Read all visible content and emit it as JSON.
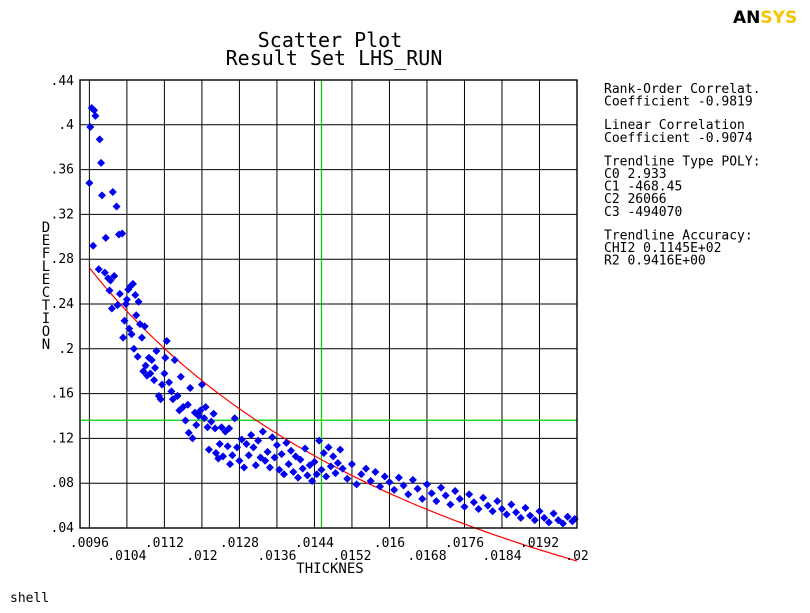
{
  "logo": {
    "part1": "ANSYS",
    "accent_color": "#f5c400"
  },
  "caption": "shell",
  "info_panel": [
    "Rank-Order Correlat.",
    "Coefficient -0.9819",
    "",
    "Linear Correlation",
    "Coefficient -0.9074",
    "",
    "Trendline Type POLY:",
    "C0  2.933",
    "C1  -468.45",
    "C2  26066",
    "C3  -494070",
    "",
    "Trendline Accuracy:",
    "CHI2 0.1145E+02",
    "R2   0.9416E+00"
  ],
  "chart_data": {
    "type": "scatter",
    "title": "Scatter Plot",
    "subtitle": "Result Set LHS_RUN",
    "xlabel": "THICKNES",
    "ylabel": "DEFLECTION",
    "xlim": [
      0.0094,
      0.02
    ],
    "ylim": [
      0.04,
      0.44
    ],
    "x_ticks": [
      ".0096",
      ".0104",
      ".0112",
      ".012",
      ".0128",
      ".0136",
      ".0144",
      ".0152",
      ".016",
      ".0168",
      ".0176",
      ".0184",
      ".0192",
      ".02"
    ],
    "x_tick_values": [
      0.0096,
      0.0104,
      0.0112,
      0.012,
      0.0128,
      0.0136,
      0.0144,
      0.0152,
      0.016,
      0.0168,
      0.0176,
      0.0184,
      0.0192,
      0.02
    ],
    "y_ticks": [
      ".04",
      ".08",
      ".12",
      ".16",
      ".2",
      ".24",
      ".28",
      ".32",
      ".36",
      ".4",
      ".44"
    ],
    "y_tick_values": [
      0.04,
      0.08,
      0.12,
      0.16,
      0.2,
      0.24,
      0.28,
      0.32,
      0.36,
      0.4,
      0.44
    ],
    "grid": true,
    "marker_color": "#0000ee",
    "trend_color": "#ff0000",
    "mean_line_color": "#00cc00",
    "mean_x": 0.01455,
    "mean_y": 0.1362,
    "trendline": {
      "type": "poly",
      "coefficients": [
        2.933,
        -468.45,
        26066,
        -494070
      ]
    },
    "points": [
      [
        0.0096,
        0.348
      ],
      [
        0.00962,
        0.398
      ],
      [
        0.00965,
        0.415
      ],
      [
        0.00968,
        0.292
      ],
      [
        0.0097,
        0.413
      ],
      [
        0.00973,
        0.408
      ],
      [
        0.0098,
        0.271
      ],
      [
        0.00982,
        0.387
      ],
      [
        0.00985,
        0.366
      ],
      [
        0.00987,
        0.337
      ],
      [
        0.00993,
        0.268
      ],
      [
        0.00995,
        0.299
      ],
      [
        0.01,
        0.263
      ],
      [
        0.01003,
        0.252
      ],
      [
        0.01005,
        0.261
      ],
      [
        0.01008,
        0.236
      ],
      [
        0.0101,
        0.34
      ],
      [
        0.01013,
        0.265
      ],
      [
        0.01018,
        0.327
      ],
      [
        0.0102,
        0.239
      ],
      [
        0.01023,
        0.302
      ],
      [
        0.01025,
        0.249
      ],
      [
        0.0103,
        0.303
      ],
      [
        0.01032,
        0.21
      ],
      [
        0.01035,
        0.225
      ],
      [
        0.01038,
        0.24
      ],
      [
        0.0104,
        0.244
      ],
      [
        0.01043,
        0.253
      ],
      [
        0.01045,
        0.218
      ],
      [
        0.01048,
        0.256
      ],
      [
        0.0105,
        0.213
      ],
      [
        0.01053,
        0.258
      ],
      [
        0.01055,
        0.2
      ],
      [
        0.01058,
        0.248
      ],
      [
        0.0106,
        0.23
      ],
      [
        0.01063,
        0.193
      ],
      [
        0.01065,
        0.242
      ],
      [
        0.01068,
        0.222
      ],
      [
        0.01072,
        0.21
      ],
      [
        0.01075,
        0.18
      ],
      [
        0.01078,
        0.22
      ],
      [
        0.0108,
        0.185
      ],
      [
        0.01083,
        0.176
      ],
      [
        0.01087,
        0.192
      ],
      [
        0.0109,
        0.178
      ],
      [
        0.01093,
        0.19
      ],
      [
        0.01098,
        0.172
      ],
      [
        0.011,
        0.183
      ],
      [
        0.01103,
        0.198
      ],
      [
        0.01108,
        0.158
      ],
      [
        0.01112,
        0.155
      ],
      [
        0.01115,
        0.168
      ],
      [
        0.0112,
        0.178
      ],
      [
        0.01122,
        0.192
      ],
      [
        0.01125,
        0.207
      ],
      [
        0.0113,
        0.17
      ],
      [
        0.01135,
        0.162
      ],
      [
        0.01138,
        0.155
      ],
      [
        0.01142,
        0.19
      ],
      [
        0.01148,
        0.158
      ],
      [
        0.01152,
        0.145
      ],
      [
        0.01155,
        0.175
      ],
      [
        0.0116,
        0.148
      ],
      [
        0.01165,
        0.136
      ],
      [
        0.0117,
        0.15
      ],
      [
        0.01172,
        0.125
      ],
      [
        0.01175,
        0.165
      ],
      [
        0.0118,
        0.12
      ],
      [
        0.01185,
        0.143
      ],
      [
        0.01188,
        0.132
      ],
      [
        0.01193,
        0.14
      ],
      [
        0.01197,
        0.145
      ],
      [
        0.012,
        0.168
      ],
      [
        0.01205,
        0.138
      ],
      [
        0.01208,
        0.148
      ],
      [
        0.01212,
        0.13
      ],
      [
        0.01215,
        0.11
      ],
      [
        0.0122,
        0.135
      ],
      [
        0.01225,
        0.142
      ],
      [
        0.01228,
        0.129
      ],
      [
        0.0123,
        0.107
      ],
      [
        0.01235,
        0.102
      ],
      [
        0.01238,
        0.115
      ],
      [
        0.01242,
        0.13
      ],
      [
        0.01245,
        0.104
      ],
      [
        0.0125,
        0.126
      ],
      [
        0.01255,
        0.113
      ],
      [
        0.01258,
        0.129
      ],
      [
        0.0126,
        0.097
      ],
      [
        0.01265,
        0.105
      ],
      [
        0.0127,
        0.138
      ],
      [
        0.01275,
        0.112
      ],
      [
        0.0128,
        0.1
      ],
      [
        0.01285,
        0.119
      ],
      [
        0.0129,
        0.094
      ],
      [
        0.01295,
        0.115
      ],
      [
        0.013,
        0.105
      ],
      [
        0.01305,
        0.123
      ],
      [
        0.0131,
        0.112
      ],
      [
        0.01315,
        0.096
      ],
      [
        0.0132,
        0.118
      ],
      [
        0.01325,
        0.103
      ],
      [
        0.0133,
        0.126
      ],
      [
        0.01335,
        0.1
      ],
      [
        0.0134,
        0.108
      ],
      [
        0.01345,
        0.094
      ],
      [
        0.0135,
        0.121
      ],
      [
        0.01355,
        0.103
      ],
      [
        0.0136,
        0.114
      ],
      [
        0.01365,
        0.092
      ],
      [
        0.0137,
        0.106
      ],
      [
        0.01375,
        0.088
      ],
      [
        0.0138,
        0.116
      ],
      [
        0.01385,
        0.097
      ],
      [
        0.0139,
        0.109
      ],
      [
        0.01395,
        0.09
      ],
      [
        0.014,
        0.104
      ],
      [
        0.01405,
        0.085
      ],
      [
        0.0141,
        0.101
      ],
      [
        0.01415,
        0.093
      ],
      [
        0.0142,
        0.111
      ],
      [
        0.01425,
        0.087
      ],
      [
        0.0143,
        0.096
      ],
      [
        0.01435,
        0.082
      ],
      [
        0.0144,
        0.099
      ],
      [
        0.01445,
        0.088
      ],
      [
        0.0145,
        0.118
      ],
      [
        0.01455,
        0.092
      ],
      [
        0.0146,
        0.107
      ],
      [
        0.01465,
        0.086
      ],
      [
        0.0147,
        0.112
      ],
      [
        0.01475,
        0.095
      ],
      [
        0.0148,
        0.104
      ],
      [
        0.01485,
        0.089
      ],
      [
        0.0149,
        0.098
      ],
      [
        0.01495,
        0.11
      ],
      [
        0.015,
        0.093
      ],
      [
        0.0151,
        0.084
      ],
      [
        0.0152,
        0.097
      ],
      [
        0.0153,
        0.079
      ],
      [
        0.0154,
        0.088
      ],
      [
        0.0155,
        0.093
      ],
      [
        0.0156,
        0.082
      ],
      [
        0.0157,
        0.09
      ],
      [
        0.0158,
        0.077
      ],
      [
        0.0159,
        0.086
      ],
      [
        0.016,
        0.081
      ],
      [
        0.0161,
        0.074
      ],
      [
        0.0162,
        0.085
      ],
      [
        0.0163,
        0.078
      ],
      [
        0.0164,
        0.07
      ],
      [
        0.0165,
        0.083
      ],
      [
        0.0166,
        0.075
      ],
      [
        0.0167,
        0.066
      ],
      [
        0.0168,
        0.079
      ],
      [
        0.0169,
        0.071
      ],
      [
        0.017,
        0.064
      ],
      [
        0.0171,
        0.076
      ],
      [
        0.0172,
        0.069
      ],
      [
        0.0173,
        0.061
      ],
      [
        0.0174,
        0.073
      ],
      [
        0.0175,
        0.066
      ],
      [
        0.0176,
        0.059
      ],
      [
        0.0177,
        0.07
      ],
      [
        0.0178,
        0.063
      ],
      [
        0.0179,
        0.057
      ],
      [
        0.018,
        0.067
      ],
      [
        0.0181,
        0.06
      ],
      [
        0.0182,
        0.055
      ],
      [
        0.0183,
        0.064
      ],
      [
        0.0184,
        0.057
      ],
      [
        0.0185,
        0.052
      ],
      [
        0.0186,
        0.061
      ],
      [
        0.0187,
        0.054
      ],
      [
        0.0188,
        0.049
      ],
      [
        0.0189,
        0.058
      ],
      [
        0.019,
        0.051
      ],
      [
        0.0191,
        0.047
      ],
      [
        0.0192,
        0.055
      ],
      [
        0.0193,
        0.049
      ],
      [
        0.0194,
        0.045
      ],
      [
        0.0195,
        0.053
      ],
      [
        0.0196,
        0.047
      ],
      [
        0.0197,
        0.044
      ],
      [
        0.0198,
        0.05
      ],
      [
        0.0199,
        0.046
      ],
      [
        0.01995,
        0.048
      ]
    ]
  }
}
